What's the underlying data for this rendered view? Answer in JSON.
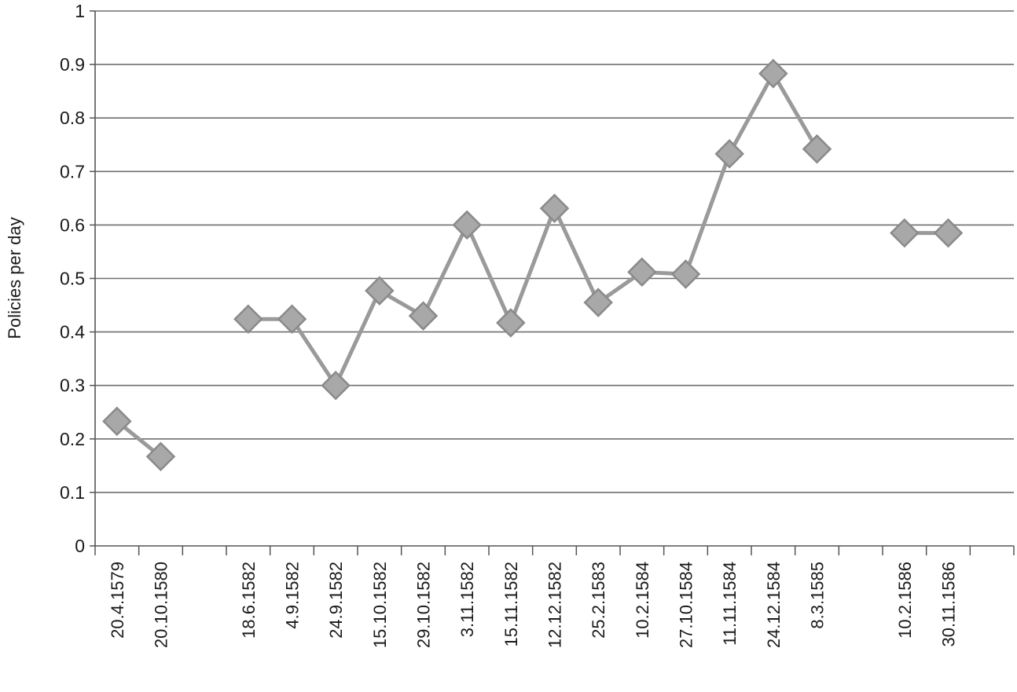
{
  "chart_data": {
    "type": "line",
    "title": "",
    "xlabel": "",
    "ylabel": "Policies per day",
    "ylim": [
      0,
      1
    ],
    "yticks": [
      "0",
      "0.1",
      "0.2",
      "0.3",
      "0.4",
      "0.5",
      "0.6",
      "0.7",
      "0.8",
      "0.9",
      "1"
    ],
    "grid": true,
    "legend": "none",
    "categories": [
      "20.4.1579",
      "20.10.1580",
      "",
      "18.6.1582",
      "4.9.1582",
      "24.9.1582",
      "15.10.1582",
      "29.10.1582",
      "3.11.1582",
      "15.11.1582",
      "12.12.1582",
      "25.2.1583",
      "10.2.1584",
      "27.10.1584",
      "11.11.1584",
      "24.12.1584",
      "8.3.1585",
      "",
      "10.2.1586",
      "30.11.1586",
      ""
    ],
    "series": [
      {
        "values": [
          0.233,
          0.167,
          null,
          0.424,
          0.424,
          0.3,
          0.477,
          0.43,
          0.6,
          0.417,
          0.631,
          0.455,
          0.512,
          0.508,
          0.733,
          0.883,
          0.742,
          null,
          0.585,
          0.585,
          null
        ]
      }
    ],
    "colors": {
      "line": "#9a9a9a",
      "marker_fill": "#a8a8a8",
      "marker_stroke": "#8a8a8a",
      "grid": "#6f6f6f"
    }
  }
}
